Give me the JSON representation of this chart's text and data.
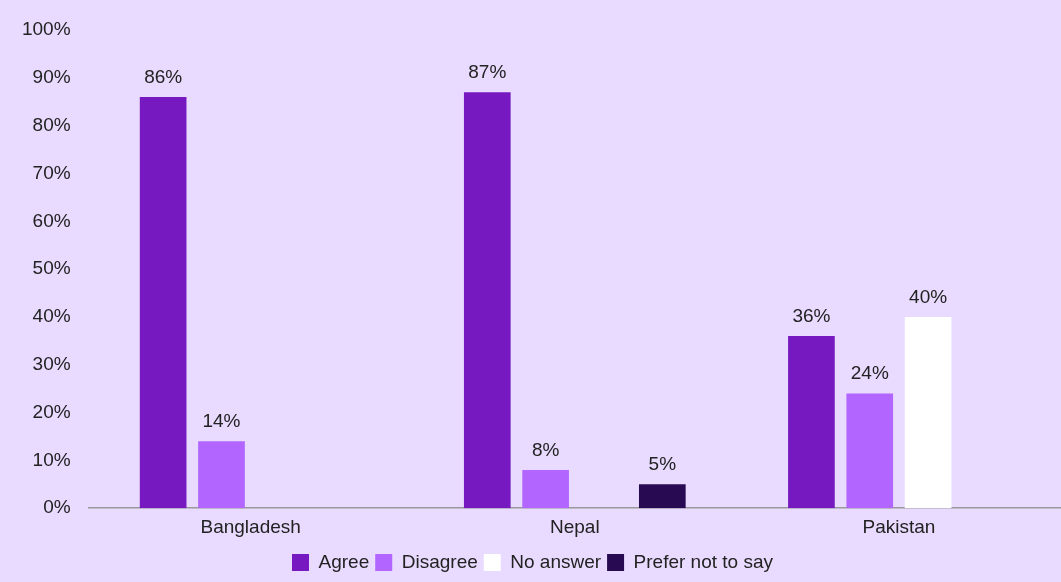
{
  "chart_data": {
    "type": "bar",
    "categories": [
      "Bangladesh",
      "Nepal",
      "Pakistan"
    ],
    "series": [
      {
        "name": "Agree",
        "color": "#7719c0",
        "values": [
          86,
          87,
          36
        ],
        "value_labels": [
          "86%",
          "87%",
          "36%"
        ]
      },
      {
        "name": "Disagree",
        "color": "#b266ff",
        "values": [
          14,
          8,
          24
        ],
        "value_labels": [
          "14%",
          "8%",
          "24%"
        ]
      },
      {
        "name": "No answer",
        "color": "#ffffff",
        "values": [
          null,
          null,
          40
        ],
        "value_labels": [
          null,
          null,
          "40%"
        ]
      },
      {
        "name": "Prefer not to say",
        "color": "#270a52",
        "values": [
          null,
          5,
          null
        ],
        "value_labels": [
          null,
          "5%",
          null
        ]
      }
    ],
    "ylim": [
      0,
      100
    ],
    "yticks": [
      {
        "value": 0,
        "label": "0%"
      },
      {
        "value": 10,
        "label": "10%"
      },
      {
        "value": 20,
        "label": "20%"
      },
      {
        "value": 30,
        "label": "30%"
      },
      {
        "value": 40,
        "label": "40%"
      },
      {
        "value": 50,
        "label": "50%"
      },
      {
        "value": 60,
        "label": "60%"
      },
      {
        "value": 70,
        "label": "70%"
      },
      {
        "value": 80,
        "label": "80%"
      },
      {
        "value": 90,
        "label": "90%"
      },
      {
        "value": 100,
        "label": "100%"
      }
    ],
    "grid": false,
    "legend": "bottom"
  }
}
